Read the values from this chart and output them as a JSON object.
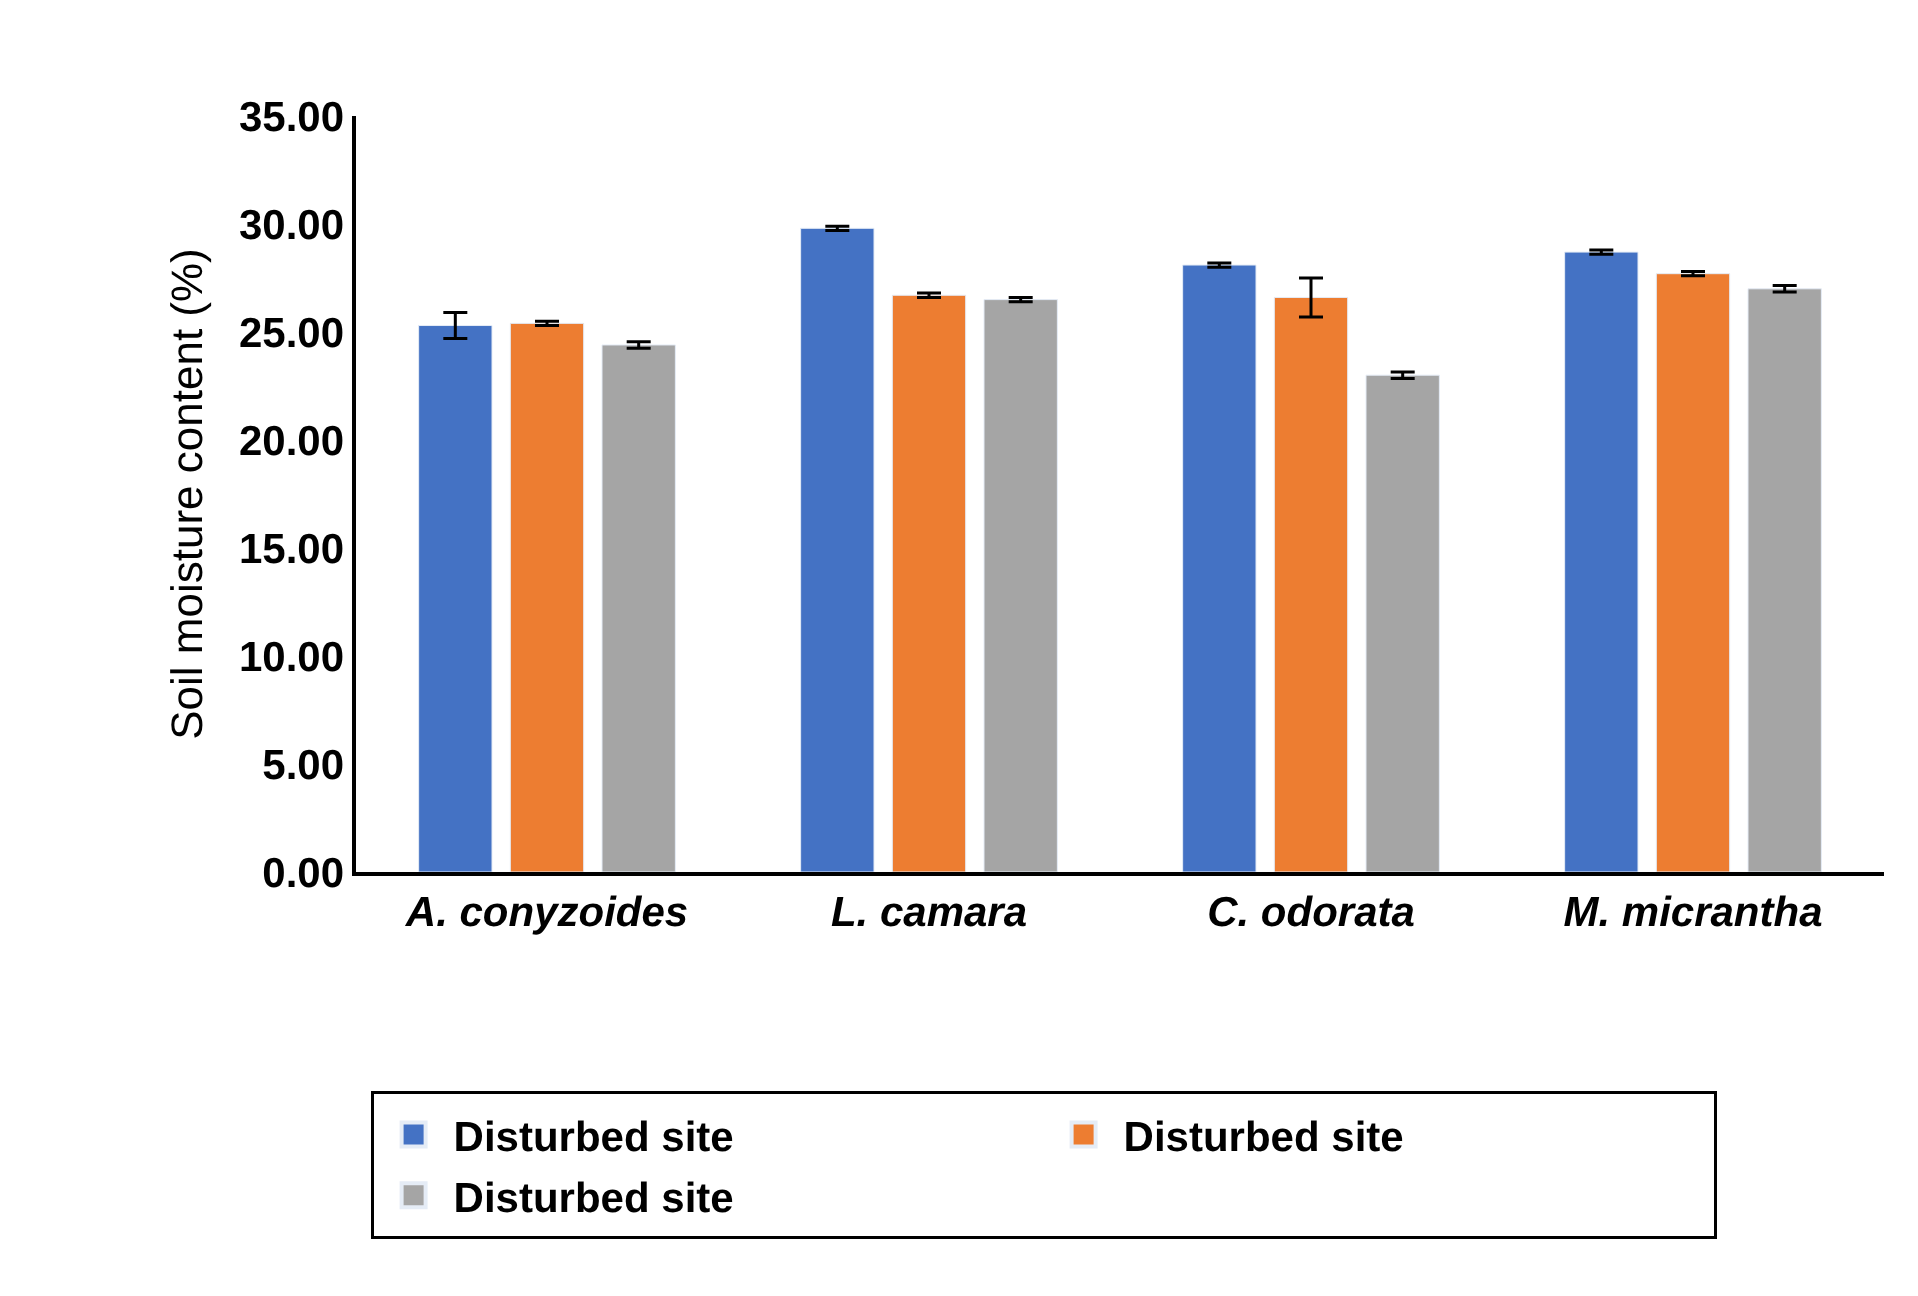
{
  "chart_data": {
    "type": "bar",
    "ylabel": "Soil moisture content (%)",
    "categories": [
      "A. conyzoides",
      "L. camara",
      "C. odorata",
      "M. micrantha"
    ],
    "series": [
      {
        "name": "Disturbed site",
        "color": "#4472c4",
        "values": [
          25.3,
          29.8,
          28.1,
          28.7
        ],
        "errors": [
          0.6,
          0.1,
          0.1,
          0.1
        ]
      },
      {
        "name": "Disturbed site",
        "color": "#ed7d31",
        "values": [
          25.4,
          26.7,
          26.6,
          27.7
        ],
        "errors": [
          0.1,
          0.1,
          0.9,
          0.1
        ]
      },
      {
        "name": "Disturbed site",
        "color": "#a5a5a5",
        "values": [
          24.4,
          26.5,
          23.0,
          27.0
        ],
        "errors": [
          0.15,
          0.1,
          0.15,
          0.15
        ]
      }
    ],
    "ylim": [
      0,
      35
    ],
    "yticks": [
      {
        "value": 0,
        "label": "0.00"
      },
      {
        "value": 5,
        "label": "5.00"
      },
      {
        "value": 10,
        "label": "10.00"
      },
      {
        "value": 15,
        "label": "15.00"
      },
      {
        "value": 20,
        "label": "20.00"
      },
      {
        "value": 25,
        "label": "25.00"
      },
      {
        "value": 30,
        "label": "30.00"
      },
      {
        "value": 35,
        "label": "35.00"
      }
    ],
    "legend": "bottom"
  }
}
